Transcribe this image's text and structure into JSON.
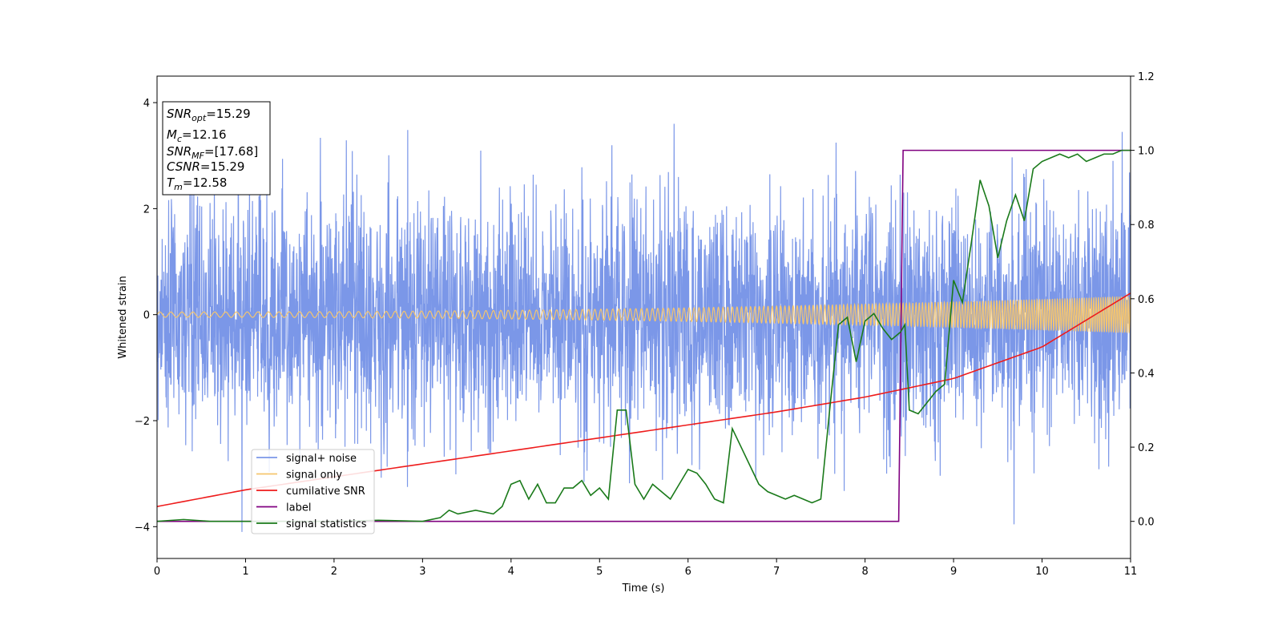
{
  "chart_data": {
    "type": "line",
    "xlabel": "Time (s)",
    "ylabel": "Whitened strain",
    "xlim": [
      0,
      11
    ],
    "ylim": [
      -4.6,
      4.5
    ],
    "y2lim": [
      -0.1,
      1.2
    ],
    "xticks": [
      "0",
      "1",
      "2",
      "3",
      "4",
      "5",
      "6",
      "7",
      "8",
      "9",
      "10",
      "11"
    ],
    "yticks": [
      "4",
      "2",
      "0",
      "−2",
      "−4"
    ],
    "y2ticks": [
      "1.2",
      "1.0",
      "0.8",
      "0.6",
      "0.4",
      "0.2",
      "0.0"
    ],
    "grid": false,
    "legend_position": "lower-left",
    "info_box": [
      {
        "main": "SNR",
        "sub": "opt",
        "rest": "=15.29"
      },
      {
        "main": "M",
        "sub": "c",
        "rest": "=12.16"
      },
      {
        "main": "SNR",
        "sub": "MF",
        "rest": "=[17.68]"
      },
      {
        "main": "CSNR",
        "sub": "",
        "rest": "=15.29"
      },
      {
        "main": "T",
        "sub": "m",
        "rest": "=12.58"
      }
    ],
    "series": [
      {
        "name": "signal+ noise",
        "color": "#7b97e8",
        "axis": "left",
        "kind": "noise",
        "amplitude_std": 1.1,
        "min": -4.1,
        "max": 3.6
      },
      {
        "name": "signal only",
        "color": "#f5c56e",
        "axis": "left",
        "kind": "chirp",
        "amp_start": 0.05,
        "amp_end": 0.35,
        "freq_start": 8,
        "freq_end": 40
      },
      {
        "name": "cumilative SNR",
        "color": "#ee1c1c",
        "axis": "right",
        "x": [
          0,
          1,
          2,
          3,
          4,
          5,
          6,
          7,
          8,
          9,
          10,
          11
        ],
        "y": [
          0.04,
          0.085,
          0.12,
          0.155,
          0.19,
          0.225,
          0.26,
          0.295,
          0.335,
          0.385,
          0.47,
          0.615
        ]
      },
      {
        "name": "label",
        "color": "#800080",
        "axis": "right",
        "x": [
          0,
          8.38,
          8.43,
          11
        ],
        "y": [
          0,
          0,
          1,
          1
        ]
      },
      {
        "name": "signal statistics",
        "color": "#1a7a1a",
        "axis": "right",
        "x": [
          0,
          0.3,
          0.6,
          1.0,
          1.5,
          2.0,
          2.5,
          3.0,
          3.2,
          3.3,
          3.4,
          3.6,
          3.8,
          3.9,
          4.0,
          4.1,
          4.2,
          4.3,
          4.4,
          4.5,
          4.6,
          4.7,
          4.8,
          4.9,
          5.0,
          5.1,
          5.2,
          5.3,
          5.4,
          5.5,
          5.6,
          5.7,
          5.8,
          5.9,
          6.0,
          6.1,
          6.2,
          6.3,
          6.4,
          6.5,
          6.6,
          6.7,
          6.8,
          6.9,
          7.0,
          7.1,
          7.2,
          7.3,
          7.4,
          7.5,
          7.6,
          7.7,
          7.8,
          7.9,
          8.0,
          8.1,
          8.2,
          8.3,
          8.4,
          8.45,
          8.5,
          8.6,
          8.8,
          8.9,
          9.0,
          9.1,
          9.2,
          9.3,
          9.4,
          9.5,
          9.6,
          9.7,
          9.8,
          9.9,
          10.0,
          10.1,
          10.2,
          10.3,
          10.4,
          10.5,
          10.6,
          10.7,
          10.8,
          10.9,
          11.0
        ],
        "y": [
          0.0,
          0.005,
          0.0,
          0.0,
          0.0,
          0.0,
          0.003,
          0.0,
          0.01,
          0.03,
          0.02,
          0.03,
          0.02,
          0.04,
          0.1,
          0.11,
          0.06,
          0.1,
          0.05,
          0.05,
          0.09,
          0.09,
          0.11,
          0.07,
          0.09,
          0.06,
          0.3,
          0.3,
          0.1,
          0.06,
          0.1,
          0.08,
          0.06,
          0.1,
          0.14,
          0.13,
          0.1,
          0.06,
          0.05,
          0.25,
          0.2,
          0.15,
          0.1,
          0.08,
          0.07,
          0.06,
          0.07,
          0.06,
          0.05,
          0.06,
          0.3,
          0.53,
          0.55,
          0.43,
          0.54,
          0.56,
          0.52,
          0.49,
          0.51,
          0.53,
          0.3,
          0.29,
          0.35,
          0.37,
          0.65,
          0.59,
          0.75,
          0.92,
          0.85,
          0.71,
          0.81,
          0.88,
          0.81,
          0.95,
          0.97,
          0.98,
          0.99,
          0.98,
          0.99,
          0.97,
          0.98,
          0.99,
          0.99,
          1.0,
          1.0
        ]
      }
    ]
  }
}
